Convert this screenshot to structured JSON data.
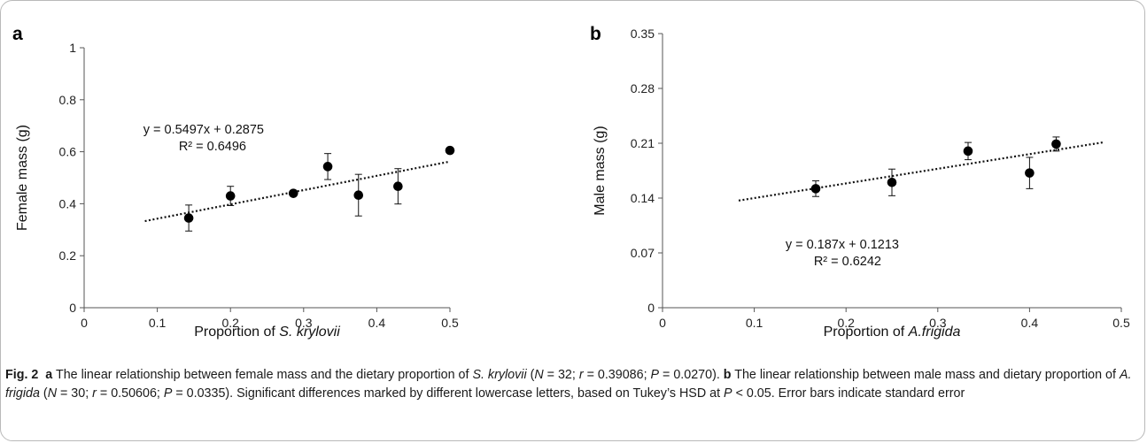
{
  "chart_data": [
    {
      "type": "scatter",
      "panel_label": "a",
      "ylabel": "Female mass (g)",
      "xlabel_prefix": "Proportion of ",
      "xlabel_species": "S. krylovii",
      "xlim": [
        0,
        0.5
      ],
      "ylim": [
        0,
        1
      ],
      "x_ticks": [
        "0",
        "0.1",
        "0.2",
        "0.3",
        "0.4",
        "0.5"
      ],
      "y_ticks": [
        "0",
        "0.2",
        "0.4",
        "0.6",
        "0.8",
        "1"
      ],
      "points": [
        {
          "x": 0.143,
          "y": 0.345,
          "se": 0.05
        },
        {
          "x": 0.2,
          "y": 0.43,
          "se": 0.037
        },
        {
          "x": 0.286,
          "y": 0.44,
          "se": 0.01
        },
        {
          "x": 0.333,
          "y": 0.543,
          "se": 0.05
        },
        {
          "x": 0.375,
          "y": 0.433,
          "se": 0.08
        },
        {
          "x": 0.429,
          "y": 0.467,
          "se": 0.068
        },
        {
          "x": 0.5,
          "y": 0.605,
          "se": 0.008
        }
      ],
      "trendline": {
        "slope": 0.5497,
        "intercept": 0.2875,
        "x_range": [
          0.083,
          0.5
        ]
      },
      "equation": "y = 0.5497x + 0.2875",
      "r_squared": "R² = 0.6496"
    },
    {
      "type": "scatter",
      "panel_label": "b",
      "ylabel": "Male mass (g)",
      "xlabel_prefix": "Proportion of ",
      "xlabel_species": "A.frigida",
      "xlim": [
        0,
        0.5
      ],
      "ylim": [
        0,
        0.35
      ],
      "x_ticks": [
        "0",
        "0.1",
        "0.2",
        "0.3",
        "0.4",
        "0.5"
      ],
      "y_ticks": [
        "0",
        "0.07",
        "0.14",
        "0.21",
        "0.28",
        "0.35"
      ],
      "points": [
        {
          "x": 0.167,
          "y": 0.152,
          "se": 0.01
        },
        {
          "x": 0.25,
          "y": 0.16,
          "se": 0.017
        },
        {
          "x": 0.333,
          "y": 0.2,
          "se": 0.011
        },
        {
          "x": 0.4,
          "y": 0.172,
          "se": 0.02
        },
        {
          "x": 0.429,
          "y": 0.209,
          "se": 0.009
        }
      ],
      "trendline": {
        "slope": 0.187,
        "intercept": 0.1213,
        "x_range": [
          0.083,
          0.48
        ]
      },
      "equation": "y = 0.187x + 0.1213",
      "r_squared": "R² = 0.6242"
    }
  ],
  "caption": {
    "fig_label": "Fig. 2",
    "a_label": "a",
    "a_text1": " The linear relationship between female mass and the dietary proportion of ",
    "a_species": "S. krylovii",
    "a_text2": " (",
    "a_N": "N",
    "a_text3": " = 32; ",
    "a_r": "r",
    "a_text4": " = 0.39086; ",
    "a_P": "P",
    "a_text5": " = 0.0270). ",
    "b_label": "b",
    "b_text1": " The linear relationship between male mass and dietary proportion of ",
    "b_species": "A. frigida",
    "b_text2": " (",
    "b_N": "N",
    "b_text3": " = 30; ",
    "b_r": "r",
    "b_text4": " = 0.50606; ",
    "b_P": "P",
    "b_text5": " = 0.0335). Significant differences marked by different lowercase letters, based on Tukey’s HSD at ",
    "t_P": "P",
    "t_text": " < 0.05. Error bars indicate standard error"
  }
}
